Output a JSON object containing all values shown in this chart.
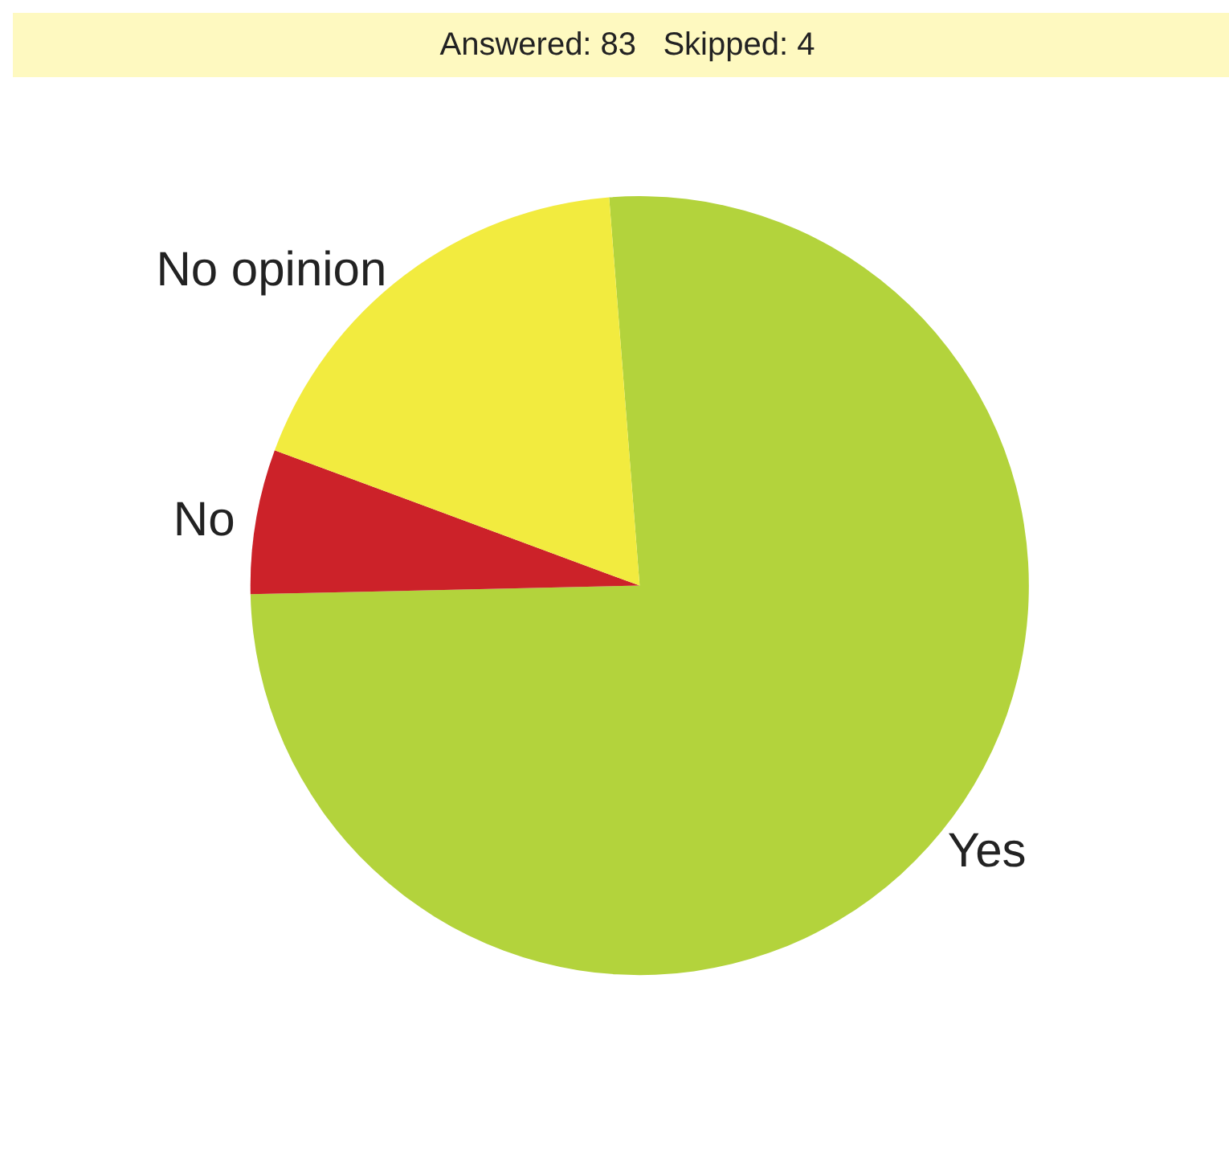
{
  "chart_data": {
    "type": "pie",
    "title": "Answered: 83   Skipped: 4",
    "categories": [
      "Yes",
      "No",
      "No opinion"
    ],
    "values": [
      75.9,
      6.0,
      18.1
    ],
    "colors": [
      "#b3d33c",
      "#cc2229",
      "#f2eb3f"
    ]
  }
}
